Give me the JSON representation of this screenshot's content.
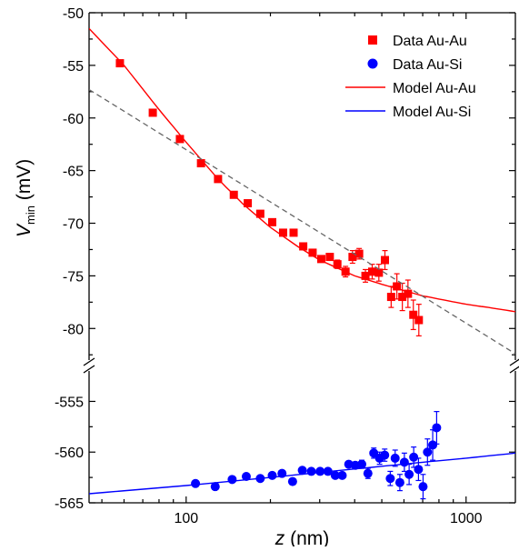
{
  "chart_data": {
    "type": "scatter",
    "title": "",
    "xlabel_var": "z",
    "xlabel_unit": " (nm)",
    "ylabel_var": "V",
    "ylabel_sub": "min",
    "ylabel_unit": " (mV)",
    "x_scale": "log",
    "xlim": [
      45,
      1500
    ],
    "x_ticks": [
      100,
      1000
    ],
    "x_tick_labels": [
      "100",
      "1000"
    ],
    "y_axis_broken": true,
    "upper_ylim": [
      -83,
      -50
    ],
    "upper_y_ticks": [
      -50,
      -55,
      -60,
      -65,
      -70,
      -75,
      -80
    ],
    "upper_y_tick_labels": [
      "-50",
      "-55",
      "-60",
      "-65",
      "-70",
      "-75",
      "-80"
    ],
    "lower_ylim": [
      -565,
      -552
    ],
    "lower_y_ticks": [
      -555,
      -560,
      -565
    ],
    "lower_y_tick_labels": [
      "-555",
      "-560",
      "-565"
    ],
    "grid": false,
    "legend_position": "top-right",
    "legend": [
      {
        "label": "Data Au-Au",
        "kind": "square",
        "color": "#ff0000"
      },
      {
        "label": "Data Au-Si",
        "kind": "circle",
        "color": "#0000ff"
      },
      {
        "label": "Model Au-Au",
        "kind": "line",
        "color": "#ff0000"
      },
      {
        "label": "Model Au-Si",
        "kind": "line",
        "color": "#0000ff"
      }
    ],
    "series": [
      {
        "name": "Data Au-Au",
        "marker": "square",
        "color": "#ff0000",
        "panel": "upper",
        "x": [
          58,
          76,
          95,
          113,
          130,
          148,
          166,
          184,
          203,
          222,
          242,
          262,
          283,
          304,
          326,
          347,
          371,
          393,
          415,
          437,
          462,
          488,
          513,
          540,
          566,
          592,
          620,
          648,
          678
        ],
        "y": [
          -54.8,
          -59.5,
          -62.0,
          -64.3,
          -65.8,
          -67.3,
          -68.1,
          -69.1,
          -69.9,
          -70.9,
          -70.9,
          -72.2,
          -72.8,
          -73.4,
          -73.2,
          -73.9,
          -74.6,
          -73.2,
          -72.9,
          -75.0,
          -74.6,
          -74.7,
          -73.5,
          -77.0,
          -76.0,
          -77.0,
          -76.7,
          -78.7,
          -79.2
        ],
        "err": [
          0,
          0,
          0,
          0,
          0,
          0,
          0,
          0,
          0,
          0,
          0,
          0,
          0,
          0,
          0,
          0.4,
          0.5,
          0.6,
          0.5,
          0.6,
          0.7,
          0.8,
          0.9,
          1.0,
          1.2,
          1.3,
          1.3,
          1.4,
          1.5
        ]
      },
      {
        "name": "Data Au-Si",
        "marker": "circle",
        "color": "#0000ff",
        "panel": "lower",
        "x": [
          108,
          127,
          146,
          164,
          184,
          203,
          220,
          240,
          260,
          280,
          301,
          321,
          341,
          361,
          381,
          402,
          424,
          446,
          468,
          491,
          512,
          536,
          558,
          580,
          602,
          626,
          650,
          676,
          702,
          728,
          760,
          785
        ],
        "y": [
          -563.1,
          -563.4,
          -562.7,
          -562.4,
          -562.6,
          -562.3,
          -562.1,
          -562.9,
          -561.8,
          -561.9,
          -561.9,
          -561.9,
          -562.3,
          -562.3,
          -561.2,
          -561.3,
          -561.2,
          -562.1,
          -560.1,
          -560.6,
          -560.3,
          -562.6,
          -560.6,
          -563.0,
          -561.0,
          -562.2,
          -560.5,
          -561.7,
          -563.4,
          -560.0,
          -559.3,
          -557.6
        ],
        "err": [
          0,
          0,
          0,
          0,
          0,
          0,
          0,
          0,
          0,
          0,
          0,
          0,
          0,
          0,
          0.3,
          0.3,
          0.4,
          0.5,
          0.5,
          0.6,
          0.6,
          0.7,
          0.8,
          0.8,
          0.9,
          1.0,
          1.0,
          1.1,
          1.2,
          1.3,
          1.5,
          1.6
        ]
      },
      {
        "name": "Model Au-Au",
        "line": "solid",
        "color": "#ff0000",
        "panel": "upper",
        "x": [
          45,
          60,
          80,
          100,
          130,
          160,
          200,
          250,
          300,
          400,
          500,
          600,
          700,
          800,
          1000,
          1200,
          1500
        ],
        "y": [
          -51.5,
          -55.0,
          -59.2,
          -62.3,
          -65.8,
          -68.2,
          -70.4,
          -72.2,
          -73.5,
          -75.0,
          -75.8,
          -76.4,
          -76.9,
          -77.2,
          -77.7,
          -78.0,
          -78.4
        ]
      },
      {
        "name": "Model Au-Si",
        "line": "solid",
        "color": "#0000ff",
        "panel": "lower",
        "x": [
          45,
          100,
          200,
          300,
          500,
          700,
          1000,
          1500
        ],
        "y": [
          -564.1,
          -563.3,
          -562.5,
          -562.0,
          -561.4,
          -561.0,
          -560.6,
          -560.1
        ]
      },
      {
        "name": "",
        "line": "dashed",
        "color": "#666666",
        "panel": "upper",
        "x": [
          45,
          1500
        ],
        "y": [
          -57.3,
          -82.4
        ]
      }
    ]
  }
}
